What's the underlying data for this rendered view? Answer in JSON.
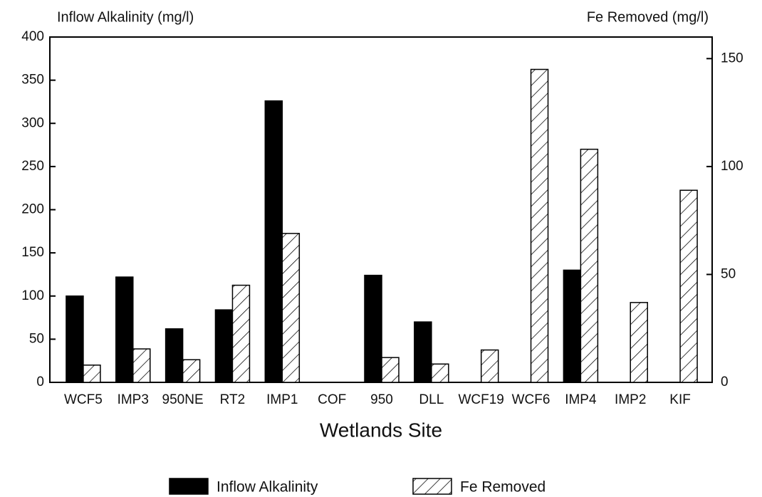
{
  "chart_data": {
    "type": "bar",
    "y_label": "Inflow Alkalinity (mg/l)",
    "y2_label": "Fe Removed (mg/l)",
    "x_label": "Wetlands Site",
    "categories": [
      "WCF5",
      "IMP3",
      "950NE",
      "RT2",
      "IMP1",
      "COF",
      "950",
      "DLL",
      "WCF19",
      "WCF6",
      "IMP4",
      "IMP2",
      "KIF"
    ],
    "series": [
      {
        "name": "Inflow Alkalinity",
        "color": "#000000",
        "pattern": "solid",
        "values": [
          100,
          122,
          62,
          84,
          326,
          0,
          124,
          70,
          0,
          0,
          130,
          0,
          0
        ]
      },
      {
        "name": "Fe Removed",
        "color": "#000000",
        "pattern": "hatch",
        "axis": "y2",
        "values": [
          8,
          15.5,
          10.5,
          45,
          69,
          0,
          11.5,
          8.5,
          15,
          145,
          108,
          37,
          89
        ]
      }
    ],
    "ylim": [
      0,
      400
    ],
    "yticks": [
      0,
      50,
      100,
      150,
      200,
      250,
      300,
      350,
      400
    ],
    "y2lim": [
      0,
      160
    ],
    "y2ticks": [
      0,
      50,
      100,
      150
    ]
  }
}
